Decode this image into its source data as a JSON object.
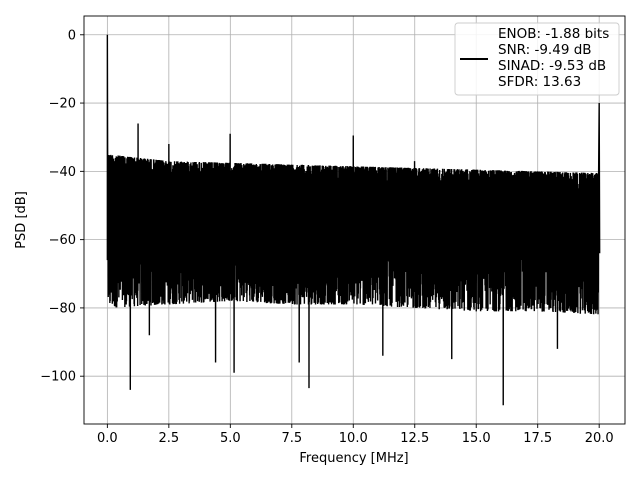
{
  "chart_data": {
    "type": "line",
    "xlabel": "Frequency [MHz]",
    "ylabel": "PSD [dB]",
    "xlim": [
      -0.95,
      21.05
    ],
    "ylim": [
      -114,
      5.5
    ],
    "xticks": [
      0.0,
      2.5,
      5.0,
      7.5,
      10.0,
      12.5,
      15.0,
      17.5,
      20.0
    ],
    "xtick_labels": [
      "0.0",
      "2.5",
      "5.0",
      "7.5",
      "10.0",
      "12.5",
      "15.0",
      "17.5",
      "20.0"
    ],
    "yticks": [
      0,
      -20,
      -40,
      -60,
      -80,
      -100
    ],
    "ytick_labels": [
      "0",
      "−20",
      "−40",
      "−60",
      "−80",
      "−100"
    ],
    "grid": true,
    "legend_position": "top-right",
    "line_color": "#000000",
    "series": [
      {
        "name": "ENOB: -1.88 bits\nSNR: -9.49 dB\nSINAD: -9.53 dB\nSFDR: 13.63",
        "noise_band": {
          "x": [
            0,
            2.5,
            5,
            7.5,
            10,
            12.5,
            15,
            17.5,
            20
          ],
          "upper": [
            -35,
            -37,
            -37.5,
            -38,
            -38.5,
            -39,
            -39.5,
            -40,
            -40.5
          ],
          "lower_typical": [
            -80,
            -79,
            -78,
            -79,
            -79,
            -80,
            -81,
            -81,
            -82
          ]
        },
        "deep_nulls": [
          {
            "x": 0.93,
            "y": -104
          },
          {
            "x": 1.7,
            "y": -88
          },
          {
            "x": 4.4,
            "y": -96
          },
          {
            "x": 5.15,
            "y": -99
          },
          {
            "x": 8.2,
            "y": -103.5
          },
          {
            "x": 7.8,
            "y": -96
          },
          {
            "x": 11.2,
            "y": -94
          },
          {
            "x": 14,
            "y": -95
          },
          {
            "x": 16.1,
            "y": -108.5
          },
          {
            "x": 18.3,
            "y": -92
          }
        ],
        "peaks": [
          {
            "x": 0.0,
            "y": 0
          },
          {
            "x": 0.02,
            "y": -27
          },
          {
            "x": 1.25,
            "y": -26
          },
          {
            "x": 2.5,
            "y": -32
          },
          {
            "x": 5.0,
            "y": -29
          },
          {
            "x": 10.0,
            "y": -29.5
          },
          {
            "x": 12.5,
            "y": -37
          },
          {
            "x": 20.0,
            "y": -20
          }
        ]
      }
    ]
  }
}
